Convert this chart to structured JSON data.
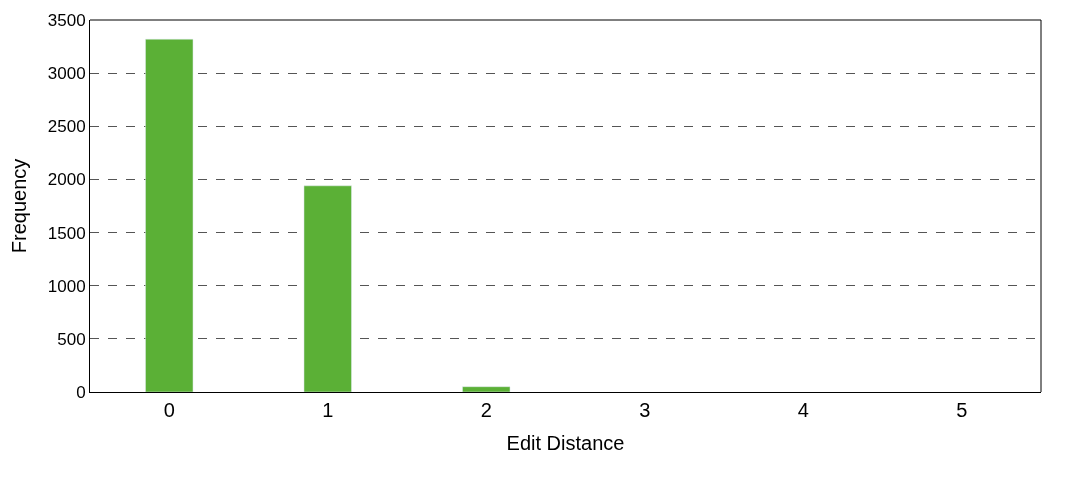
{
  "chart_data": {
    "type": "bar",
    "xlabel": "Edit Distance",
    "ylabel": "Frequency",
    "categories": [
      "0",
      "1",
      "2",
      "3",
      "4",
      "5"
    ],
    "values": [
      3320,
      1940,
      50,
      null,
      null,
      null
    ],
    "color": "#5bb036",
    "ylim": [
      0,
      3500
    ],
    "yticks": [
      0,
      500,
      1000,
      1500,
      2000,
      2500,
      3000,
      3500
    ],
    "grid": "y",
    "legend": false
  }
}
